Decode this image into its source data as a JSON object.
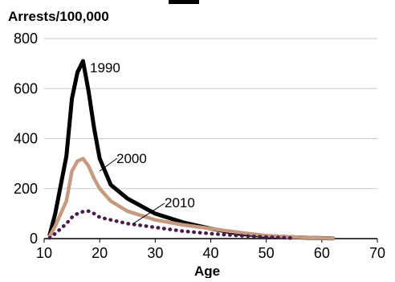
{
  "chart_data": {
    "type": "line",
    "title": "",
    "ylabel": "Arrests/100,000",
    "xlabel": "Age",
    "xlim": [
      10,
      70
    ],
    "ylim": [
      0,
      800
    ],
    "xticks": [
      10,
      20,
      30,
      40,
      50,
      60,
      70
    ],
    "yticks": [
      0,
      200,
      400,
      600,
      800
    ],
    "grid": "horizontal",
    "legend": "none",
    "series": [
      {
        "name": "1990",
        "color": "#000000",
        "style": "solid",
        "x": [
          11,
          12,
          14,
          15,
          16,
          17,
          18,
          19,
          20,
          22,
          25,
          30,
          35,
          40,
          45,
          50,
          55,
          60,
          62
        ],
        "y": [
          15,
          100,
          330,
          560,
          665,
          710,
          590,
          440,
          320,
          215,
          160,
          100,
          65,
          40,
          20,
          10,
          5,
          2,
          1
        ]
      },
      {
        "name": "2000",
        "color": "#c49a80",
        "style": "solid",
        "x": [
          11,
          12,
          14,
          15,
          16,
          17,
          18,
          19,
          20,
          22,
          25,
          30,
          35,
          40,
          45,
          50,
          55,
          60,
          62
        ],
        "y": [
          10,
          50,
          150,
          270,
          310,
          320,
          290,
          240,
          200,
          150,
          110,
          75,
          55,
          40,
          25,
          12,
          6,
          2,
          1
        ]
      },
      {
        "name": "2010",
        "color": "#4a1c4a",
        "style": "dotted",
        "x": [
          11,
          12,
          14,
          15,
          16,
          17,
          18,
          19,
          20,
          22,
          25,
          30,
          35,
          40,
          45,
          50,
          55
        ],
        "y": [
          3,
          20,
          60,
          85,
          100,
          108,
          110,
          100,
          85,
          75,
          60,
          45,
          30,
          20,
          12,
          6,
          2
        ]
      }
    ],
    "annotations": [
      {
        "text": "1990",
        "series": "1990"
      },
      {
        "text": "2000",
        "series": "2000"
      },
      {
        "text": "2010",
        "series": "2010"
      }
    ]
  }
}
